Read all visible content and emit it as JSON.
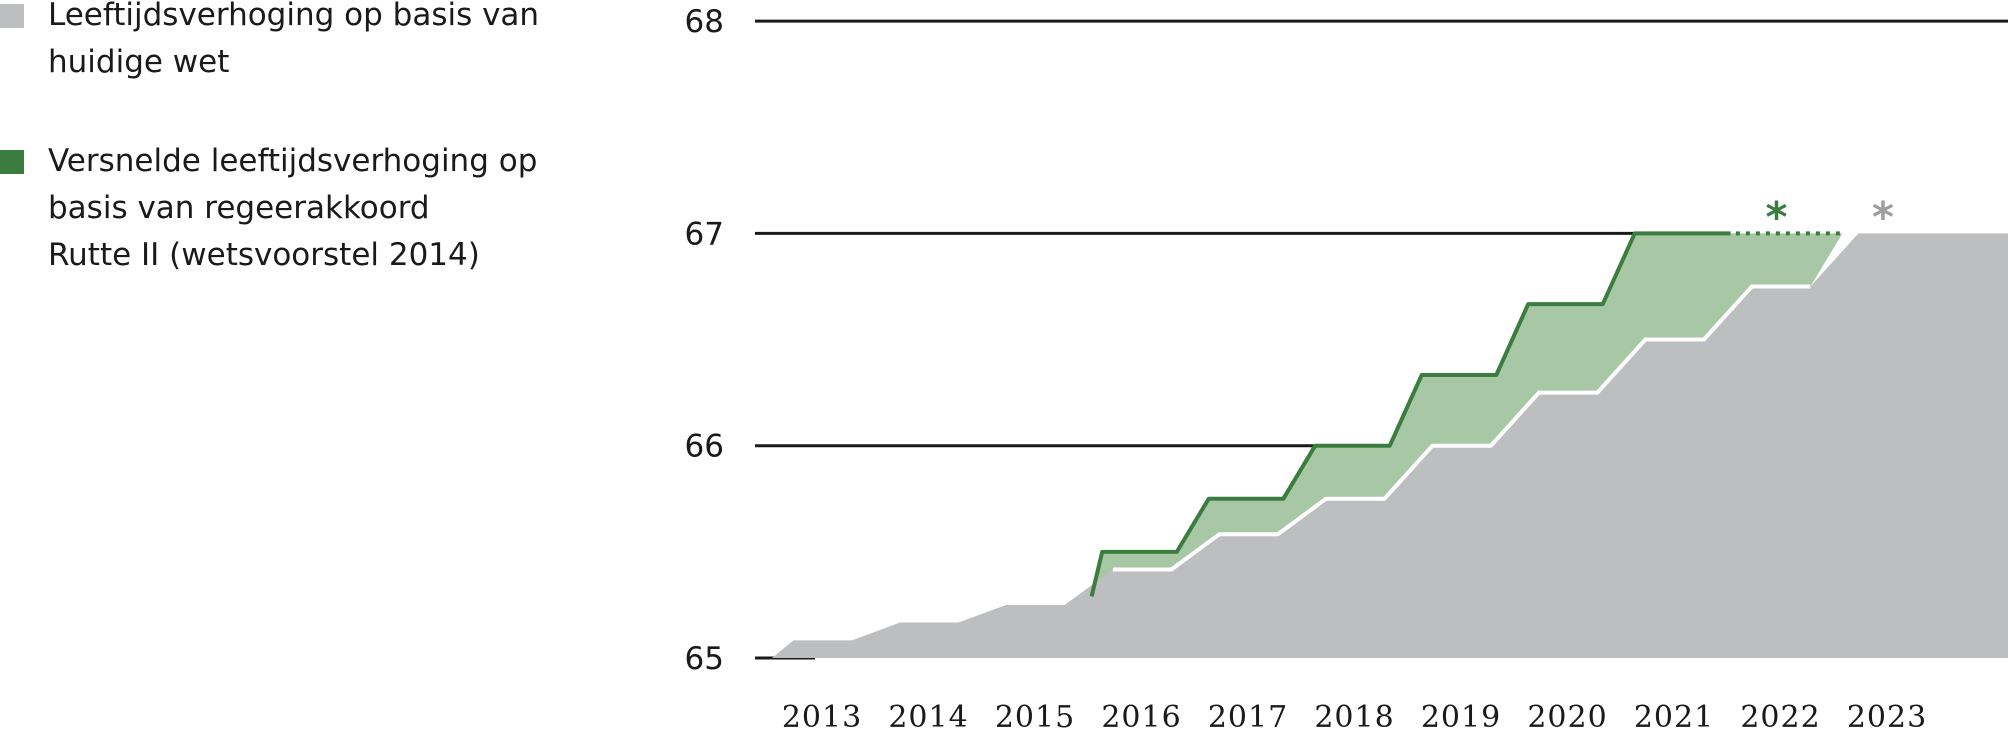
{
  "legend": {
    "items": [
      {
        "lines": [
          "Leeftijdsverhoging op basis van",
          "huidige wet"
        ],
        "color": "#bdbec0"
      },
      {
        "lines": [
          "Versnelde leeftijdsverhoging op",
          "basis van regeerakkoord",
          "Rutte II (wetsvoorstel 2014)"
        ],
        "color": "#3b7d3f"
      }
    ]
  },
  "chart_data": {
    "type": "area",
    "title": "",
    "xlabel": "",
    "ylabel": "",
    "ylim": [
      65,
      68
    ],
    "xlim": [
      2012.5,
      2023.5
    ],
    "y_ticks": [
      "65",
      "66",
      "67",
      "68"
    ],
    "x_ticks": [
      "2013",
      "2014",
      "2015",
      "2016",
      "2017",
      "2018",
      "2019",
      "2020",
      "2021",
      "2022",
      "2023"
    ],
    "grid": true,
    "legend_position": "top-left",
    "colors": {
      "current_law": "#bdbec0",
      "accelerated_line": "#3b7d3f",
      "accelerated_fill": "#a8c7a5",
      "current_law_star": "#9d9d9f",
      "grid": "#1a1a1a"
    },
    "series": [
      {
        "name": "Leeftijdsverhoging op basis van huidige wet",
        "x": [
          2013,
          2014,
          2015,
          2016,
          2017,
          2018,
          2019,
          2020,
          2021,
          2022,
          2023
        ],
        "values": [
          65.083,
          65.167,
          65.25,
          65.417,
          65.583,
          65.75,
          66.0,
          66.25,
          66.5,
          66.75,
          67.0
        ]
      },
      {
        "name": "Versnelde leeftijdsverhoging op basis van regeerakkoord Rutte II (wetsvoorstel 2014)",
        "x": [
          2016,
          2017,
          2018,
          2019,
          2020,
          2021
        ],
        "values": [
          65.5,
          65.75,
          66.0,
          66.333,
          66.667,
          67.0
        ]
      }
    ],
    "annotations": [
      {
        "text": "*",
        "x": 2022,
        "y": 67,
        "series": "accelerated"
      },
      {
        "text": "*",
        "x": 2023,
        "y": 67,
        "series": "current_law"
      }
    ]
  }
}
